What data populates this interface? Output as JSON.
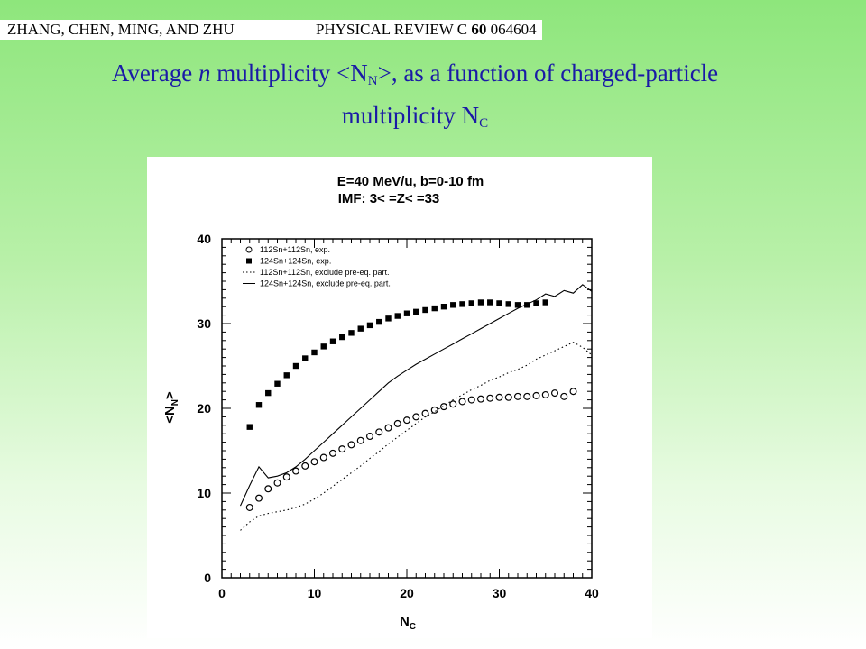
{
  "header": {
    "authors": "ZHANG, CHEN, MING, AND ZHU",
    "journal": "PHYSICAL REVIEW C",
    "volume": "60",
    "article": "064604"
  },
  "slide_title": {
    "part1": "Average ",
    "n_symbol": "n",
    "part2": " multiplicity <N",
    "n_sub": "N",
    "part3": ">,  as a function of charged-particle",
    "line2": "multiplicity N",
    "c_sub": "C"
  },
  "colors": {
    "title": "#1a1aa6",
    "background_top": "#8ee67c",
    "background_bottom": "#ffffff"
  },
  "chart_data": {
    "type": "scatter",
    "title": "E=40 MeV/u, b=0-10 fm",
    "subtitle": "IMF: 3< =Z< =33",
    "xlabel": "N_C",
    "ylabel": "<N_N>",
    "xlim": [
      0,
      40
    ],
    "ylim": [
      0,
      40
    ],
    "xticks": [
      "0",
      "10",
      "20",
      "30",
      "40"
    ],
    "yticks": [
      "0",
      "10",
      "20",
      "30",
      "40"
    ],
    "legend_position": "top-left",
    "series": [
      {
        "name": "112Sn+112Sn, exp.",
        "style": "open-circle",
        "x": [
          3,
          4,
          5,
          6,
          7,
          8,
          9,
          10,
          11,
          12,
          13,
          14,
          15,
          16,
          17,
          18,
          19,
          20,
          21,
          22,
          23,
          24,
          25,
          26,
          27,
          28,
          29,
          30,
          31,
          32,
          33,
          34,
          35,
          36,
          37,
          38
        ],
        "y": [
          8.3,
          9.4,
          10.5,
          11.2,
          11.9,
          12.6,
          13.2,
          13.7,
          14.2,
          14.7,
          15.2,
          15.7,
          16.2,
          16.7,
          17.2,
          17.7,
          18.2,
          18.6,
          19.0,
          19.4,
          19.8,
          20.2,
          20.5,
          20.8,
          21.0,
          21.1,
          21.2,
          21.3,
          21.3,
          21.4,
          21.4,
          21.5,
          21.6,
          21.8,
          21.4,
          22.0
        ]
      },
      {
        "name": "124Sn+124Sn, exp.",
        "style": "filled-circle",
        "x": [
          3,
          4,
          5,
          6,
          7,
          8,
          9,
          10,
          11,
          12,
          13,
          14,
          15,
          16,
          17,
          18,
          19,
          20,
          21,
          22,
          23,
          24,
          25,
          26,
          27,
          28,
          29,
          30,
          31,
          32,
          33,
          34,
          35
        ],
        "y": [
          17.8,
          20.4,
          21.8,
          22.9,
          23.9,
          25.0,
          25.9,
          26.6,
          27.3,
          27.9,
          28.4,
          28.9,
          29.4,
          29.8,
          30.2,
          30.6,
          30.9,
          31.2,
          31.4,
          31.6,
          31.8,
          32.0,
          32.2,
          32.3,
          32.4,
          32.5,
          32.5,
          32.4,
          32.3,
          32.2,
          32.2,
          32.4,
          32.5
        ]
      },
      {
        "name": "112Sn+112Sn, exclude pre-eq. part.",
        "style": "dotted-line",
        "x": [
          2,
          3,
          4,
          5,
          6,
          7,
          8,
          9,
          10,
          11,
          12,
          13,
          14,
          15,
          16,
          17,
          18,
          19,
          20,
          21,
          22,
          23,
          24,
          25,
          26,
          27,
          28,
          29,
          30,
          31,
          32,
          33,
          34,
          35,
          36,
          37,
          38,
          39,
          40
        ],
        "y": [
          5.6,
          6.6,
          7.3,
          7.6,
          7.8,
          8.0,
          8.3,
          8.7,
          9.3,
          10.0,
          10.8,
          11.6,
          12.4,
          13.2,
          14.1,
          14.9,
          15.8,
          16.6,
          17.4,
          18.2,
          19.0,
          19.6,
          20.3,
          21.0,
          21.6,
          22.2,
          22.7,
          23.3,
          23.7,
          24.2,
          24.6,
          25.1,
          25.8,
          26.3,
          26.8,
          27.3,
          27.8,
          27.2,
          26.3
        ]
      },
      {
        "name": "124Sn+124Sn, exclude pre-eq. part.",
        "style": "solid-line",
        "x": [
          2,
          3,
          4,
          5,
          6,
          7,
          8,
          9,
          10,
          11,
          12,
          13,
          14,
          15,
          16,
          17,
          18,
          19,
          20,
          21,
          22,
          23,
          24,
          25,
          26,
          27,
          28,
          29,
          30,
          31,
          32,
          33,
          34,
          35,
          36,
          37,
          38,
          39,
          40
        ],
        "y": [
          8.5,
          10.9,
          13.1,
          11.8,
          12.0,
          12.4,
          13.1,
          14.0,
          15.0,
          16.0,
          17.0,
          18.0,
          19.0,
          20.0,
          21.0,
          22.0,
          23.0,
          23.8,
          24.5,
          25.2,
          25.8,
          26.4,
          27.0,
          27.6,
          28.2,
          28.8,
          29.4,
          30.0,
          30.6,
          31.2,
          31.8,
          32.3,
          32.8,
          33.5,
          33.2,
          33.9,
          33.6,
          34.6,
          33.8
        ]
      }
    ]
  }
}
